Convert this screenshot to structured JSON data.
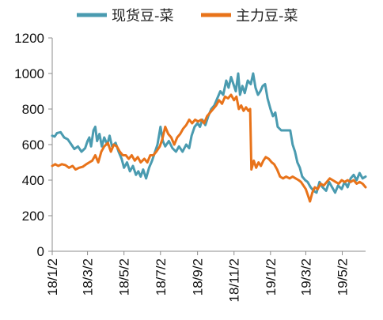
{
  "chart_data": {
    "type": "line",
    "title": "",
    "xlabel": "",
    "ylabel": "",
    "ylim": [
      0,
      1200
    ],
    "yticks": [
      0,
      200,
      400,
      600,
      800,
      1000,
      1200
    ],
    "xticks": [
      "18/1/2",
      "18/3/2",
      "18/5/2",
      "18/7/2",
      "18/9/2",
      "18/11/2",
      "19/1/2",
      "19/3/2",
      "19/5/2"
    ],
    "xrange": [
      "2018-01-02",
      "2019-06-10"
    ],
    "legend_position": "top",
    "grid": false,
    "series": [
      {
        "name": "现货豆-菜",
        "color": "#4a9bb0",
        "points": [
          [
            "2018-01-02",
            650
          ],
          [
            "2018-01-06",
            645
          ],
          [
            "2018-01-10",
            665
          ],
          [
            "2018-01-16",
            670
          ],
          [
            "2018-01-22",
            640
          ],
          [
            "2018-01-28",
            630
          ],
          [
            "2018-02-03",
            600
          ],
          [
            "2018-02-08",
            575
          ],
          [
            "2018-02-14",
            590
          ],
          [
            "2018-02-20",
            560
          ],
          [
            "2018-02-26",
            580
          ],
          [
            "2018-03-02",
            620
          ],
          [
            "2018-03-05",
            640
          ],
          [
            "2018-03-08",
            590
          ],
          [
            "2018-03-12",
            680
          ],
          [
            "2018-03-15",
            700
          ],
          [
            "2018-03-18",
            620
          ],
          [
            "2018-03-22",
            660
          ],
          [
            "2018-03-26",
            590
          ],
          [
            "2018-03-30",
            640
          ],
          [
            "2018-04-04",
            600
          ],
          [
            "2018-04-08",
            650
          ],
          [
            "2018-04-12",
            590
          ],
          [
            "2018-04-18",
            610
          ],
          [
            "2018-04-23",
            560
          ],
          [
            "2018-04-28",
            520
          ],
          [
            "2018-05-02",
            470
          ],
          [
            "2018-05-07",
            500
          ],
          [
            "2018-05-12",
            450
          ],
          [
            "2018-05-17",
            480
          ],
          [
            "2018-05-22",
            430
          ],
          [
            "2018-05-26",
            450
          ],
          [
            "2018-05-30",
            420
          ],
          [
            "2018-06-03",
            460
          ],
          [
            "2018-06-08",
            410
          ],
          [
            "2018-06-13",
            470
          ],
          [
            "2018-06-18",
            510
          ],
          [
            "2018-06-23",
            560
          ],
          [
            "2018-06-27",
            600
          ],
          [
            "2018-07-02",
            700
          ],
          [
            "2018-07-06",
            620
          ],
          [
            "2018-07-10",
            590
          ],
          [
            "2018-07-16",
            620
          ],
          [
            "2018-07-22",
            580
          ],
          [
            "2018-07-28",
            560
          ],
          [
            "2018-08-02",
            590
          ],
          [
            "2018-08-08",
            560
          ],
          [
            "2018-08-14",
            600
          ],
          [
            "2018-08-19",
            580
          ],
          [
            "2018-08-23",
            650
          ],
          [
            "2018-08-28",
            700
          ],
          [
            "2018-09-02",
            720
          ],
          [
            "2018-09-06",
            700
          ],
          [
            "2018-09-10",
            740
          ],
          [
            "2018-09-15",
            710
          ],
          [
            "2018-09-20",
            760
          ],
          [
            "2018-09-25",
            800
          ],
          [
            "2018-09-30",
            820
          ],
          [
            "2018-10-05",
            860
          ],
          [
            "2018-10-10",
            900
          ],
          [
            "2018-10-15",
            880
          ],
          [
            "2018-10-20",
            960
          ],
          [
            "2018-10-24",
            920
          ],
          [
            "2018-10-28",
            980
          ],
          [
            "2018-11-01",
            940
          ],
          [
            "2018-11-05",
            900
          ],
          [
            "2018-11-09",
            1000
          ],
          [
            "2018-11-12",
            880
          ],
          [
            "2018-11-16",
            930
          ],
          [
            "2018-11-20",
            890
          ],
          [
            "2018-11-25",
            960
          ],
          [
            "2018-11-30",
            940
          ],
          [
            "2018-12-04",
            1000
          ],
          [
            "2018-12-08",
            920
          ],
          [
            "2018-12-12",
            880
          ],
          [
            "2018-12-16",
            900
          ],
          [
            "2018-12-20",
            930
          ],
          [
            "2018-12-24",
            940
          ],
          [
            "2018-12-28",
            860
          ],
          [
            "2019-01-02",
            800
          ],
          [
            "2019-01-06",
            760
          ],
          [
            "2019-01-10",
            780
          ],
          [
            "2019-01-14",
            700
          ],
          [
            "2019-01-20",
            680
          ],
          [
            "2019-01-28",
            680
          ],
          [
            "2019-02-04",
            680
          ],
          [
            "2019-02-08",
            600
          ],
          [
            "2019-02-12",
            560
          ],
          [
            "2019-02-16",
            500
          ],
          [
            "2019-02-20",
            470
          ],
          [
            "2019-02-24",
            420
          ],
          [
            "2019-03-01",
            400
          ],
          [
            "2019-03-05",
            390
          ],
          [
            "2019-03-10",
            360
          ],
          [
            "2019-03-15",
            340
          ],
          [
            "2019-03-20",
            330
          ],
          [
            "2019-03-25",
            390
          ],
          [
            "2019-03-30",
            360
          ],
          [
            "2019-04-05",
            340
          ],
          [
            "2019-04-10",
            390
          ],
          [
            "2019-04-15",
            360
          ],
          [
            "2019-04-20",
            330
          ],
          [
            "2019-04-25",
            370
          ],
          [
            "2019-05-01",
            350
          ],
          [
            "2019-05-06",
            390
          ],
          [
            "2019-05-11",
            360
          ],
          [
            "2019-05-16",
            410
          ],
          [
            "2019-05-21",
            430
          ],
          [
            "2019-05-26",
            400
          ],
          [
            "2019-05-31",
            440
          ],
          [
            "2019-06-05",
            410
          ],
          [
            "2019-06-10",
            420
          ]
        ]
      },
      {
        "name": "主力豆-菜",
        "color": "#e8731a",
        "points": [
          [
            "2018-01-02",
            480
          ],
          [
            "2018-01-07",
            490
          ],
          [
            "2018-01-12",
            480
          ],
          [
            "2018-01-18",
            490
          ],
          [
            "2018-01-24",
            485
          ],
          [
            "2018-01-30",
            470
          ],
          [
            "2018-02-05",
            480
          ],
          [
            "2018-02-10",
            460
          ],
          [
            "2018-02-16",
            470
          ],
          [
            "2018-02-22",
            475
          ],
          [
            "2018-02-28",
            490
          ],
          [
            "2018-03-05",
            500
          ],
          [
            "2018-03-10",
            510
          ],
          [
            "2018-03-15",
            540
          ],
          [
            "2018-03-20",
            500
          ],
          [
            "2018-03-25",
            560
          ],
          [
            "2018-03-30",
            590
          ],
          [
            "2018-04-05",
            610
          ],
          [
            "2018-04-10",
            560
          ],
          [
            "2018-04-15",
            600
          ],
          [
            "2018-04-20",
            590
          ],
          [
            "2018-04-25",
            560
          ],
          [
            "2018-04-30",
            540
          ],
          [
            "2018-05-05",
            540
          ],
          [
            "2018-05-10",
            520
          ],
          [
            "2018-05-15",
            540
          ],
          [
            "2018-05-20",
            510
          ],
          [
            "2018-05-25",
            530
          ],
          [
            "2018-05-30",
            500
          ],
          [
            "2018-06-05",
            520
          ],
          [
            "2018-06-10",
            500
          ],
          [
            "2018-06-15",
            540
          ],
          [
            "2018-06-20",
            540
          ],
          [
            "2018-06-25",
            560
          ],
          [
            "2018-07-01",
            590
          ],
          [
            "2018-07-05",
            630
          ],
          [
            "2018-07-10",
            700
          ],
          [
            "2018-07-15",
            660
          ],
          [
            "2018-07-20",
            640
          ],
          [
            "2018-07-25",
            600
          ],
          [
            "2018-07-30",
            640
          ],
          [
            "2018-08-04",
            660
          ],
          [
            "2018-08-09",
            690
          ],
          [
            "2018-08-14",
            710
          ],
          [
            "2018-08-19",
            740
          ],
          [
            "2018-08-24",
            720
          ],
          [
            "2018-08-29",
            740
          ],
          [
            "2018-09-03",
            730
          ],
          [
            "2018-09-08",
            740
          ],
          [
            "2018-09-13",
            720
          ],
          [
            "2018-09-18",
            760
          ],
          [
            "2018-09-23",
            780
          ],
          [
            "2018-09-28",
            800
          ],
          [
            "2018-10-03",
            820
          ],
          [
            "2018-10-08",
            850
          ],
          [
            "2018-10-13",
            830
          ],
          [
            "2018-10-18",
            870
          ],
          [
            "2018-10-23",
            860
          ],
          [
            "2018-10-28",
            880
          ],
          [
            "2018-11-02",
            850
          ],
          [
            "2018-11-06",
            870
          ],
          [
            "2018-11-10",
            800
          ],
          [
            "2018-11-14",
            820
          ],
          [
            "2018-11-18",
            790
          ],
          [
            "2018-11-22",
            810
          ],
          [
            "2018-11-26",
            790
          ],
          [
            "2018-11-29",
            800
          ],
          [
            "2018-12-01",
            460
          ],
          [
            "2018-12-05",
            510
          ],
          [
            "2018-12-09",
            470
          ],
          [
            "2018-12-13",
            500
          ],
          [
            "2018-12-17",
            480
          ],
          [
            "2018-12-21",
            510
          ],
          [
            "2018-12-25",
            530
          ],
          [
            "2018-12-30",
            520
          ],
          [
            "2019-01-04",
            500
          ],
          [
            "2019-01-08",
            490
          ],
          [
            "2019-01-13",
            460
          ],
          [
            "2019-01-18",
            420
          ],
          [
            "2019-01-23",
            410
          ],
          [
            "2019-01-28",
            420
          ],
          [
            "2019-02-03",
            410
          ],
          [
            "2019-02-08",
            420
          ],
          [
            "2019-02-13",
            410
          ],
          [
            "2019-02-18",
            400
          ],
          [
            "2019-02-22",
            390
          ],
          [
            "2019-02-26",
            370
          ],
          [
            "2019-03-02",
            350
          ],
          [
            "2019-03-06",
            310
          ],
          [
            "2019-03-09",
            280
          ],
          [
            "2019-03-13",
            330
          ],
          [
            "2019-03-17",
            360
          ],
          [
            "2019-03-22",
            350
          ],
          [
            "2019-03-27",
            380
          ],
          [
            "2019-04-01",
            370
          ],
          [
            "2019-04-06",
            390
          ],
          [
            "2019-04-11",
            410
          ],
          [
            "2019-04-16",
            400
          ],
          [
            "2019-04-21",
            390
          ],
          [
            "2019-04-26",
            380
          ],
          [
            "2019-05-01",
            400
          ],
          [
            "2019-05-06",
            390
          ],
          [
            "2019-05-11",
            400
          ],
          [
            "2019-05-16",
            390
          ],
          [
            "2019-05-21",
            400
          ],
          [
            "2019-05-26",
            380
          ],
          [
            "2019-05-31",
            390
          ],
          [
            "2019-06-05",
            380
          ],
          [
            "2019-06-10",
            360
          ]
        ]
      }
    ]
  }
}
